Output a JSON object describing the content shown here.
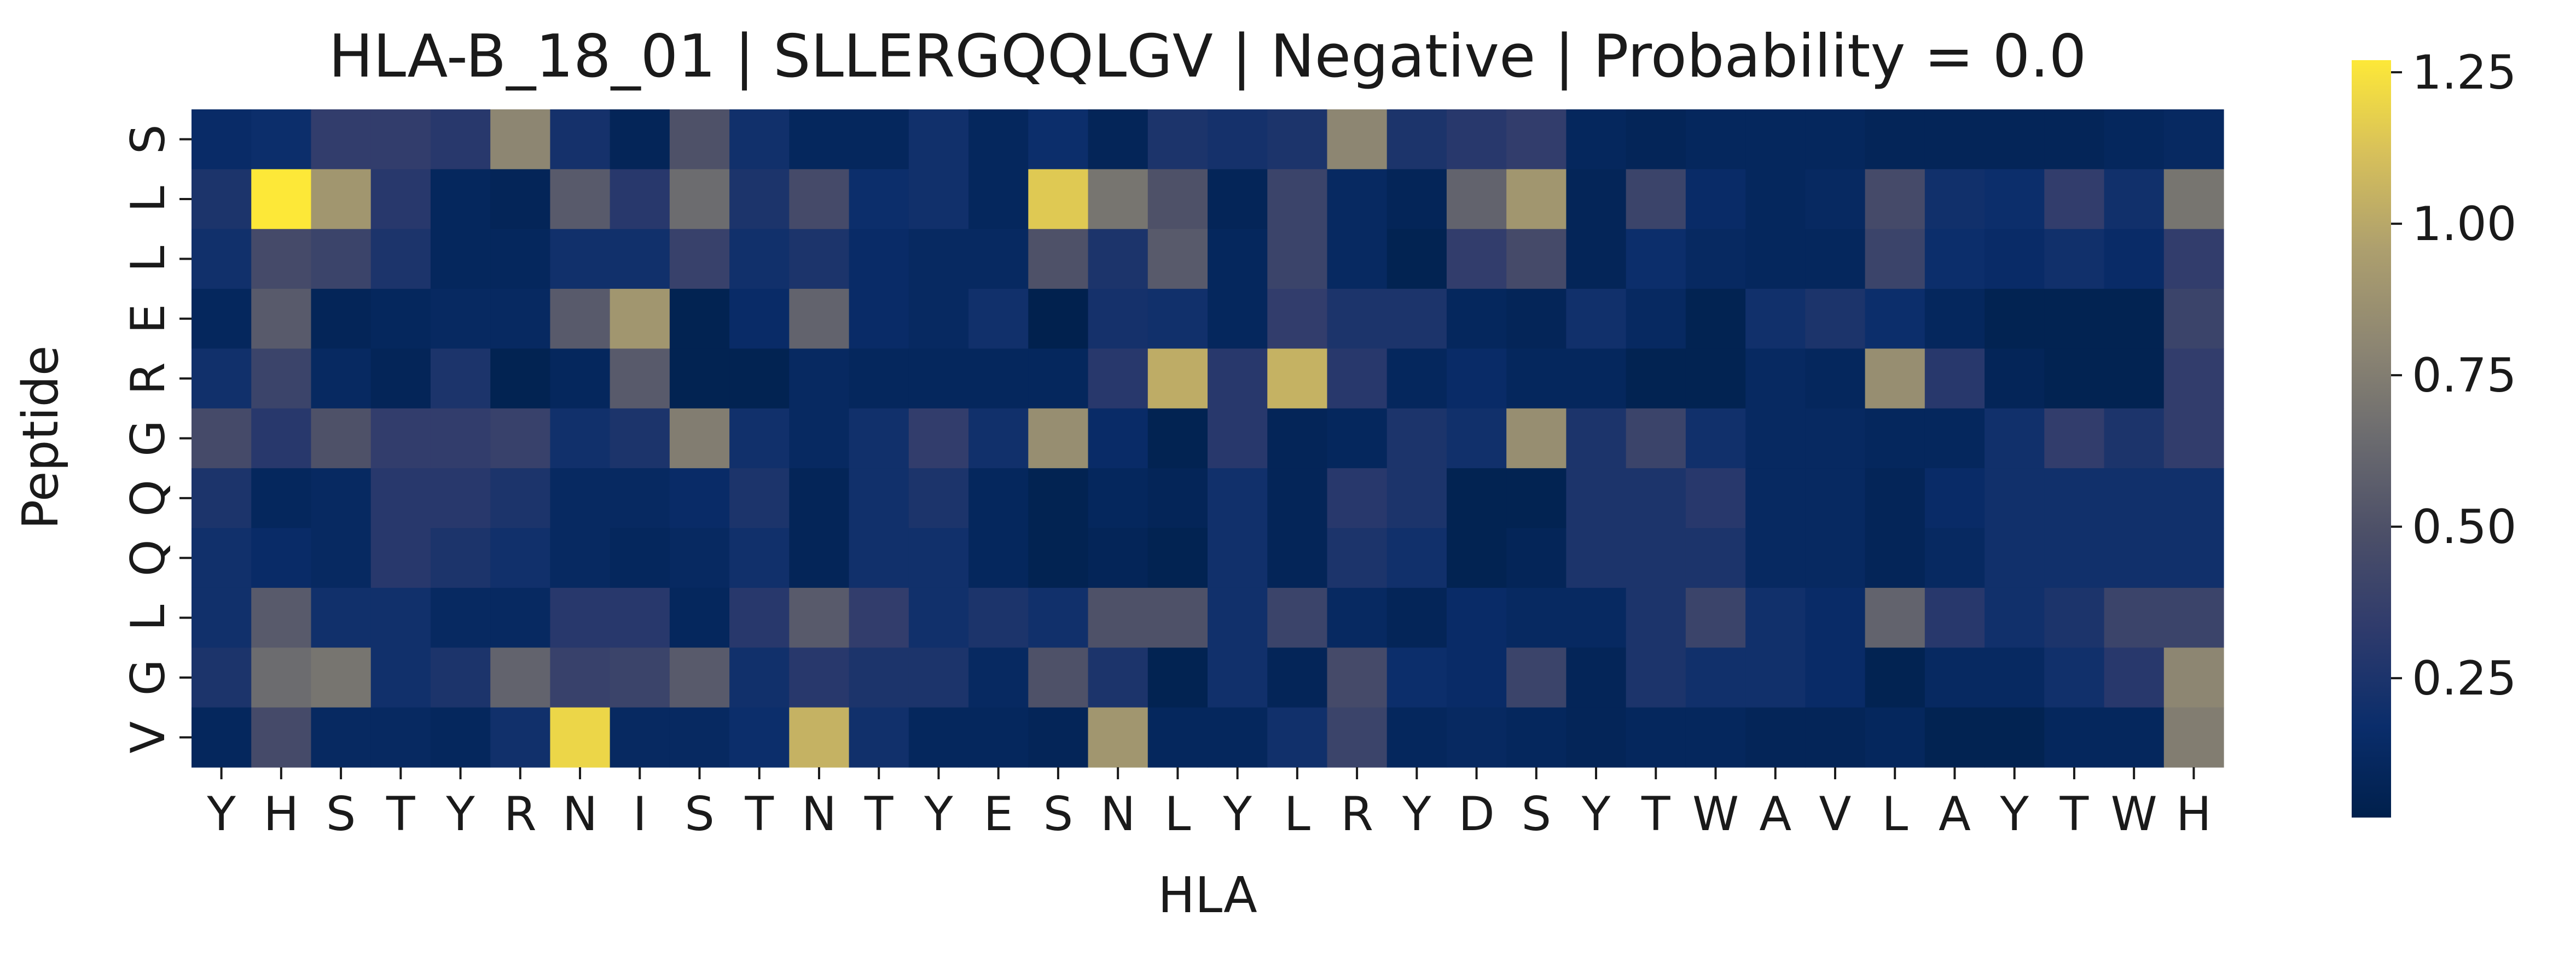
{
  "chart_data": {
    "type": "heatmap",
    "title": "HLA-B_18_01 | SLLERGQQLGV | Negative | Probability = 0.0",
    "xlabel": "HLA",
    "ylabel": "Peptide",
    "x_tick_labels": [
      "Y",
      "H",
      "S",
      "T",
      "Y",
      "R",
      "N",
      "I",
      "S",
      "T",
      "N",
      "T",
      "Y",
      "E",
      "S",
      "N",
      "L",
      "Y",
      "L",
      "R",
      "Y",
      "D",
      "S",
      "Y",
      "T",
      "W",
      "A",
      "V",
      "L",
      "A",
      "Y",
      "T",
      "W",
      "H"
    ],
    "y_tick_labels": [
      "S",
      "L",
      "L",
      "E",
      "R",
      "G",
      "Q",
      "Q",
      "L",
      "G",
      "V"
    ],
    "colormap": "cividis",
    "colorbar": {
      "range": [
        0.02,
        1.27
      ],
      "ticks": [
        0.25,
        0.5,
        0.75,
        1.0,
        1.25
      ],
      "tick_labels": [
        "0.25",
        "0.50",
        "0.75",
        "1.00",
        "1.25"
      ]
    },
    "values": [
      [
        0.15,
        0.18,
        0.35,
        0.35,
        0.3,
        0.8,
        0.22,
        0.08,
        0.5,
        0.2,
        0.1,
        0.1,
        0.2,
        0.1,
        0.18,
        0.08,
        0.25,
        0.22,
        0.25,
        0.8,
        0.25,
        0.3,
        0.35,
        0.1,
        0.08,
        0.1,
        0.1,
        0.1,
        0.08,
        0.08,
        0.08,
        0.08,
        0.1,
        0.12
      ],
      [
        0.25,
        1.27,
        0.9,
        0.3,
        0.1,
        0.08,
        0.55,
        0.3,
        0.65,
        0.25,
        0.45,
        0.18,
        0.2,
        0.1,
        1.15,
        0.7,
        0.5,
        0.08,
        0.4,
        0.12,
        0.08,
        0.6,
        0.9,
        0.08,
        0.4,
        0.15,
        0.1,
        0.12,
        0.45,
        0.2,
        0.18,
        0.35,
        0.2,
        0.7
      ],
      [
        0.2,
        0.45,
        0.4,
        0.25,
        0.1,
        0.1,
        0.2,
        0.2,
        0.38,
        0.2,
        0.25,
        0.15,
        0.12,
        0.12,
        0.5,
        0.25,
        0.55,
        0.1,
        0.4,
        0.12,
        0.05,
        0.35,
        0.45,
        0.08,
        0.18,
        0.12,
        0.1,
        0.1,
        0.4,
        0.18,
        0.15,
        0.2,
        0.15,
        0.35
      ],
      [
        0.1,
        0.55,
        0.08,
        0.1,
        0.12,
        0.12,
        0.55,
        0.9,
        0.05,
        0.15,
        0.6,
        0.15,
        0.12,
        0.2,
        0.03,
        0.22,
        0.2,
        0.1,
        0.35,
        0.25,
        0.25,
        0.1,
        0.08,
        0.2,
        0.12,
        0.05,
        0.2,
        0.25,
        0.18,
        0.1,
        0.05,
        0.05,
        0.05,
        0.4
      ],
      [
        0.2,
        0.4,
        0.12,
        0.08,
        0.25,
        0.05,
        0.1,
        0.55,
        0.05,
        0.05,
        0.12,
        0.1,
        0.1,
        0.1,
        0.1,
        0.3,
        1.02,
        0.3,
        1.05,
        0.3,
        0.1,
        0.15,
        0.1,
        0.1,
        0.05,
        0.05,
        0.12,
        0.1,
        0.85,
        0.3,
        0.08,
        0.05,
        0.05,
        0.35
      ],
      [
        0.45,
        0.3,
        0.5,
        0.35,
        0.35,
        0.38,
        0.2,
        0.25,
        0.75,
        0.2,
        0.12,
        0.2,
        0.35,
        0.2,
        0.85,
        0.15,
        0.05,
        0.3,
        0.08,
        0.1,
        0.25,
        0.2,
        0.85,
        0.25,
        0.4,
        0.2,
        0.12,
        0.12,
        0.1,
        0.1,
        0.2,
        0.35,
        0.25,
        0.35
      ],
      [
        0.25,
        0.1,
        0.12,
        0.3,
        0.3,
        0.25,
        0.12,
        0.12,
        0.15,
        0.25,
        0.08,
        0.2,
        0.25,
        0.1,
        0.05,
        0.1,
        0.08,
        0.2,
        0.08,
        0.3,
        0.25,
        0.05,
        0.05,
        0.25,
        0.25,
        0.3,
        0.12,
        0.12,
        0.08,
        0.15,
        0.2,
        0.2,
        0.2,
        0.2
      ],
      [
        0.2,
        0.15,
        0.12,
        0.3,
        0.25,
        0.2,
        0.12,
        0.1,
        0.12,
        0.2,
        0.08,
        0.2,
        0.2,
        0.1,
        0.05,
        0.08,
        0.05,
        0.2,
        0.08,
        0.25,
        0.2,
        0.05,
        0.08,
        0.25,
        0.25,
        0.25,
        0.12,
        0.12,
        0.08,
        0.12,
        0.2,
        0.2,
        0.2,
        0.2
      ],
      [
        0.2,
        0.55,
        0.2,
        0.2,
        0.12,
        0.12,
        0.3,
        0.3,
        0.1,
        0.3,
        0.55,
        0.35,
        0.2,
        0.25,
        0.2,
        0.5,
        0.5,
        0.2,
        0.4,
        0.12,
        0.08,
        0.15,
        0.12,
        0.12,
        0.25,
        0.4,
        0.2,
        0.15,
        0.6,
        0.3,
        0.2,
        0.25,
        0.4,
        0.4
      ],
      [
        0.25,
        0.65,
        0.7,
        0.2,
        0.25,
        0.6,
        0.38,
        0.4,
        0.55,
        0.2,
        0.3,
        0.25,
        0.25,
        0.12,
        0.5,
        0.25,
        0.05,
        0.2,
        0.08,
        0.45,
        0.18,
        0.15,
        0.4,
        0.08,
        0.25,
        0.2,
        0.2,
        0.15,
        0.05,
        0.12,
        0.12,
        0.2,
        0.3,
        0.8
      ],
      [
        0.1,
        0.45,
        0.12,
        0.12,
        0.1,
        0.2,
        1.2,
        0.12,
        0.12,
        0.18,
        1.05,
        0.2,
        0.1,
        0.1,
        0.08,
        0.9,
        0.1,
        0.1,
        0.2,
        0.4,
        0.1,
        0.12,
        0.1,
        0.08,
        0.1,
        0.1,
        0.08,
        0.08,
        0.1,
        0.05,
        0.05,
        0.1,
        0.1,
        0.75
      ]
    ]
  }
}
